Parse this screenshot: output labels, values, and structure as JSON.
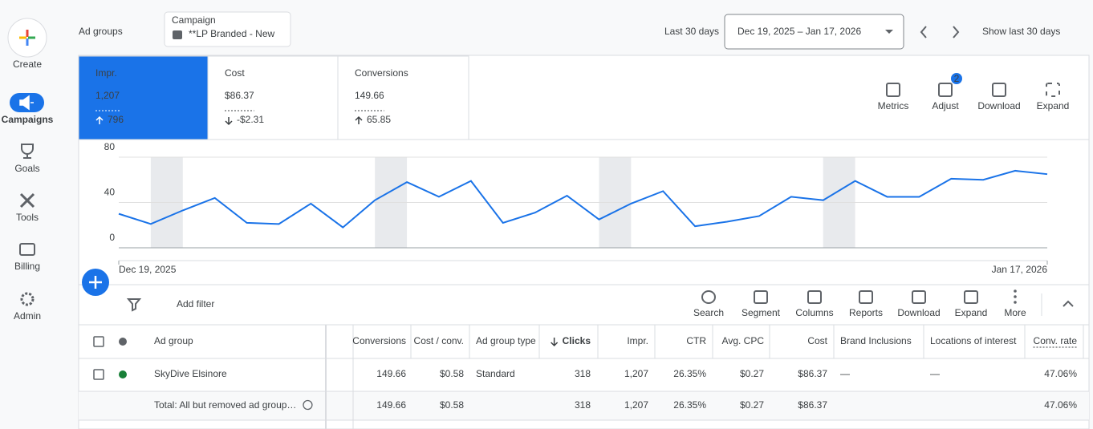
{
  "nav": {
    "create": "Create",
    "items": [
      "Campaigns",
      "Goals",
      "Tools",
      "Billing",
      "Admin"
    ]
  },
  "header": {
    "title": "Ad groups",
    "campaign_label": "Campaign",
    "campaign_name": "**LP Branded - New",
    "range_label": "Last 30 days",
    "date_range": "Dec 19, 2025 – Jan 17, 2026",
    "show_last": "Show last 30 days"
  },
  "metrics": [
    {
      "name": "Impr.",
      "value": "1,207",
      "change": "796"
    },
    {
      "name": "Cost",
      "value": "$86.37",
      "change": "-$2.31"
    },
    {
      "name": "Conversions",
      "value": "149.66",
      "change": "65.85"
    }
  ],
  "chart_tools": [
    "Metrics",
    "Adjust",
    "Download",
    "Expand"
  ],
  "adjust_badge": "2",
  "chart_data": {
    "type": "line",
    "color": "#1a73e8",
    "categories": [
      "Dec 19, 2025",
      null,
      null,
      null,
      null,
      null,
      null,
      null,
      null,
      null,
      null,
      null,
      null,
      null,
      null,
      null,
      null,
      null,
      null,
      null,
      null,
      null,
      null,
      null,
      null,
      null,
      null,
      null,
      null,
      "Jan 17, 2026"
    ],
    "values": [
      30,
      21,
      33,
      44,
      22,
      21,
      39,
      18,
      42,
      58,
      45,
      59,
      22,
      31,
      46,
      25,
      39,
      50,
      19,
      23,
      28,
      45,
      42,
      59,
      45,
      45,
      61,
      60,
      68,
      65
    ],
    "ylim": [
      0,
      80
    ],
    "yticks": [
      0,
      40,
      80
    ],
    "grid": true
  },
  "toolbar": {
    "filter": "Add filter",
    "tools": [
      "Search",
      "Segment",
      "Columns",
      "Reports",
      "Download",
      "Expand",
      "More"
    ]
  },
  "table": {
    "columns": [
      "Ad group",
      "Conversions",
      "Cost / conv.",
      "Ad group type",
      "Clicks",
      "Impr.",
      "CTR",
      "Avg. CPC",
      "Cost",
      "Brand Inclusions",
      "Locations of interest",
      "Conv. rate"
    ],
    "rows": [
      [
        "SkyDive Elsinore",
        "149.66",
        "$0.58",
        "Standard",
        "318",
        "1,207",
        "26.35%",
        "$0.27",
        "$86.37",
        "—",
        "—",
        "47.06%"
      ]
    ],
    "total": [
      "Total: All but removed ad group…",
      "149.66",
      "$0.58",
      null,
      "318",
      "1,207",
      "26.35%",
      "$0.27",
      "$86.37",
      null,
      null,
      "47.06%"
    ]
  }
}
